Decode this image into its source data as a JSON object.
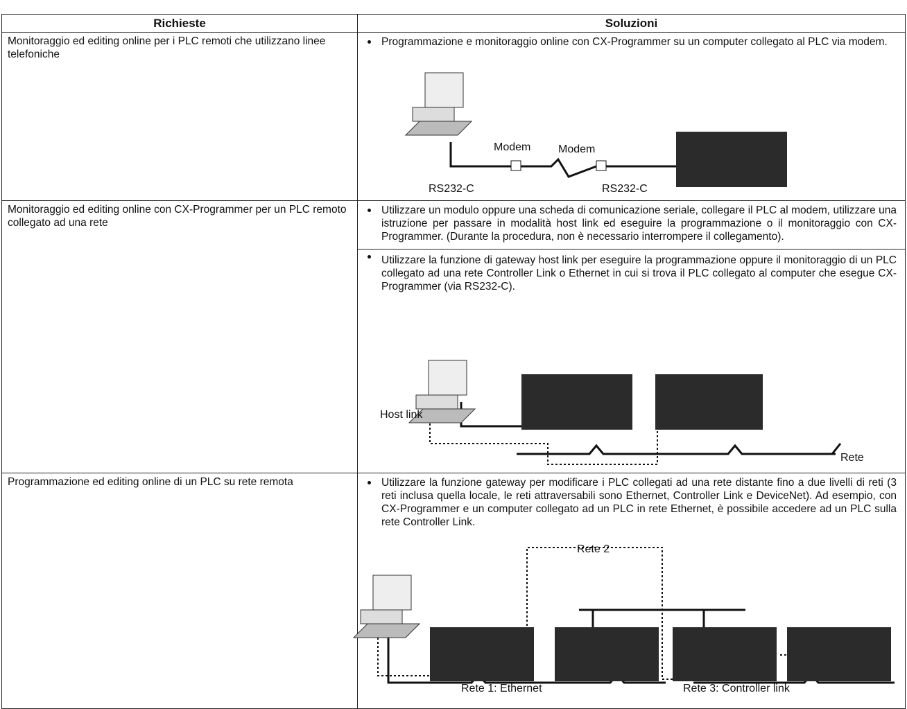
{
  "table": {
    "headers": [
      "Richieste",
      "Soluzioni"
    ],
    "rows": [
      {
        "request": "Monitoraggio ed editing online per i PLC remoti che utilizzano linee telefoniche",
        "solutions": [
          "Programmazione e monitoraggio online con CX-Programmer su un computer collegato al PLC via modem."
        ],
        "diagram_labels": [
          "Modem",
          "Modem",
          "RS232-C",
          "RS232-C"
        ]
      },
      {
        "request": "Monitoraggio ed editing online con CX-Programmer per un PLC remoto collegato ad una rete",
        "solutions": [
          "Utilizzare un modulo oppure una scheda di comunicazione seriale, collegare il PLC al modem, utilizzare una istruzione per passare in modalità host link ed eseguire la programmazione o il monitoraggio con CX-Programmer. (Durante la procedura, non è necessario interrompere il collegamento).",
          "Utilizzare la funzione di gateway host link per eseguire la programmazione oppure il monitoraggio di un PLC collegato ad una rete Controller Link o Ethernet in cui si trova il PLC collegato al computer che esegue CX-Programmer (via RS232-C)."
        ],
        "diagram_labels": [
          "Host link",
          "Rete"
        ]
      },
      {
        "request": "Programmazione ed editing online di un PLC su rete remota",
        "solutions": [
          "Utilizzare la funzione gateway per modificare i PLC collegati ad una rete distante fino a due livelli di reti (3 reti inclusa quella locale, le reti attraversabili sono Ethernet, Controller Link e DeviceNet). Ad esempio, con CX-Programmer e un computer collegato ad un PLC in rete Ethernet, è possibile accedere ad un PLC sulla rete Controller Link."
        ],
        "diagram_labels": [
          "Rete 2",
          "Rete 1: Ethernet",
          "Rete 3: Controller link"
        ]
      }
    ]
  }
}
